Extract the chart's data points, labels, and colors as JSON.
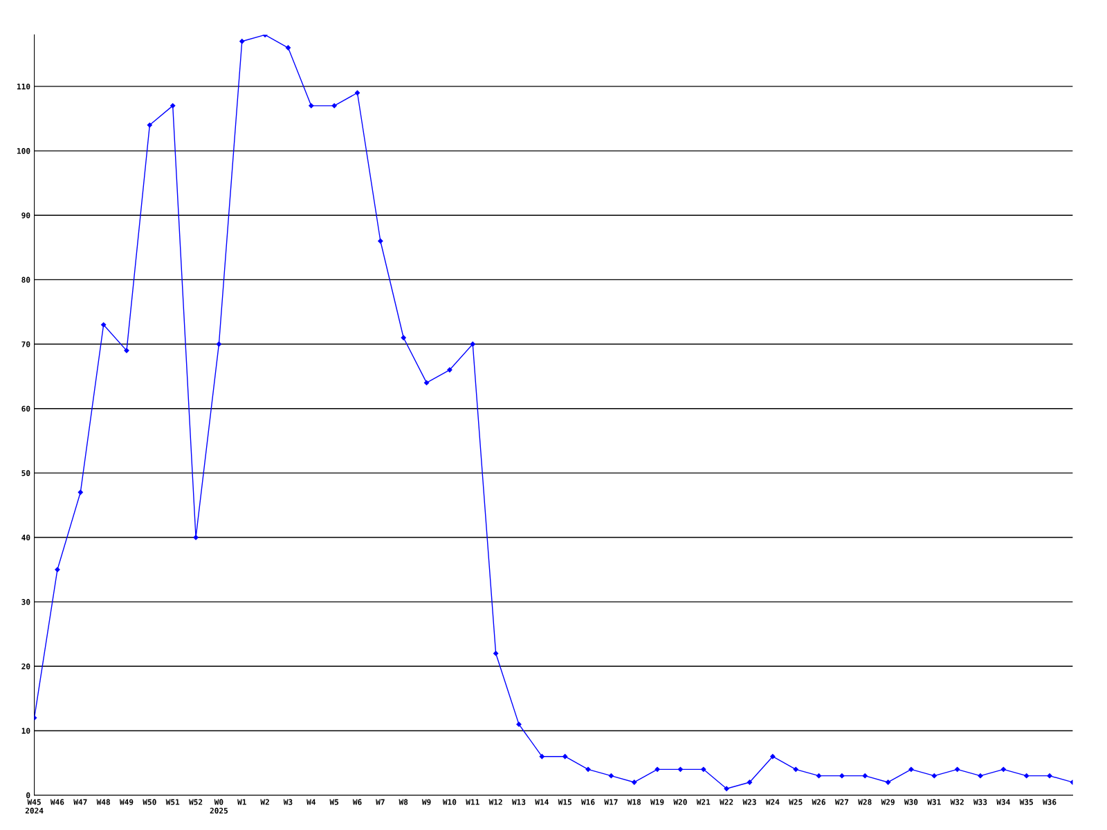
{
  "chart_data": {
    "type": "line",
    "categories": [
      "W45\n2024",
      "W46",
      "W47",
      "W48",
      "W49",
      "W50",
      "W51",
      "W52",
      "W0\n2025",
      "W1",
      "W2",
      "W3",
      "W4",
      "W5",
      "W6",
      "W7",
      "W8",
      "W9",
      "W10",
      "W11",
      "W12",
      "W13",
      "W14",
      "W15",
      "W16",
      "W17",
      "W18",
      "W19",
      "W20",
      "W21",
      "W22",
      "W23",
      "W24",
      "W25",
      "W26",
      "W27",
      "W28",
      "W29",
      "W30",
      "W31",
      "W32",
      "W33",
      "W34",
      "W35",
      "W36",
      null
    ],
    "series": [
      {
        "color": "#0000ff",
        "values": [
          12,
          35,
          47,
          73,
          69,
          104,
          107,
          40,
          70,
          117,
          118,
          116,
          107,
          107,
          109,
          86,
          71,
          64,
          66,
          70,
          22,
          11,
          6,
          6,
          4,
          3,
          2,
          4,
          4,
          4,
          1,
          2,
          6,
          4,
          3,
          3,
          3,
          2,
          4,
          3,
          4,
          3,
          4,
          3,
          3,
          2
        ]
      }
    ],
    "ylim": [
      0,
      118
    ],
    "yticks": [
      0,
      10,
      20,
      30,
      40,
      50,
      60,
      70,
      80,
      90,
      100,
      110
    ],
    "grid": "y",
    "marker": "diamond",
    "line_style": "solid"
  }
}
